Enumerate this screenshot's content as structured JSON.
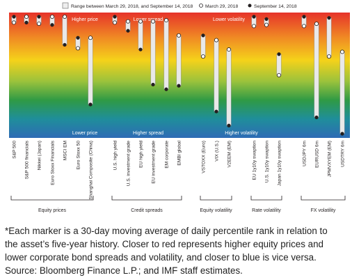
{
  "chart_data": {
    "type": "range",
    "legend": {
      "range_label": "Range between March 29, 2018, and September 14, 2018",
      "start_label": "March 29, 2018",
      "end_label": "September 14, 2018"
    },
    "band_labels": {
      "top": [
        "Higher price",
        "Lower spread",
        "Lower volatility"
      ],
      "bottom": [
        "Lower price",
        "Higher spread",
        "Higher volatility"
      ]
    },
    "ylim": [
      0,
      100
    ],
    "groups": [
      {
        "name": "Equity prices",
        "assets": [
          {
            "name": "S&P 500",
            "mar29": 95,
            "sep14": 100
          },
          {
            "name": "S&P 500 financials",
            "mar29": 100,
            "sep14": 95
          },
          {
            "name": "Nikkei (Japan)",
            "mar29": 94,
            "sep14": 100
          },
          {
            "name": "Euro Stoxx Financials",
            "mar29": 100,
            "sep14": 93
          },
          {
            "name": "MSCI EM",
            "mar29": 100,
            "sep14": 76
          },
          {
            "name": "Euro Stoxx 50",
            "mar29": 73,
            "sep14": 82
          },
          {
            "name": "Shanghai Composite (China)",
            "mar29": 82,
            "sep14": 25
          }
        ]
      },
      {
        "name": "Credit spreads",
        "assets": [
          {
            "name": "U.S. high yield",
            "mar29": 95,
            "sep14": 100
          },
          {
            "name": "U.S. investment grade",
            "mar29": 96,
            "sep14": 88
          },
          {
            "name": "EU high yield",
            "mar29": 96,
            "sep14": 72
          },
          {
            "name": "EU investment grade",
            "mar29": 96,
            "sep14": 42
          },
          {
            "name": "EM corporate",
            "mar29": 97,
            "sep14": 38
          },
          {
            "name": "EMBI global",
            "mar29": 84,
            "sep14": 41
          }
        ]
      },
      {
        "name": "Equity volatility",
        "assets": [
          {
            "name": "VSTOXX (Euro)",
            "mar29": 66,
            "sep14": 84
          },
          {
            "name": "VIX (U.S.)",
            "mar29": 80,
            "sep14": 19
          },
          {
            "name": "V2EEM (EM)",
            "mar29": 72,
            "sep14": 7
          }
        ]
      },
      {
        "name": "Rate volatility",
        "assets": [
          {
            "name": "EU 1y10y swaption",
            "mar29": 92,
            "sep14": 100
          },
          {
            "name": "U.S. 1y10y swaption",
            "mar29": 93,
            "sep14": 98
          },
          {
            "name": "Japan 1y10y swaption",
            "mar29": 50,
            "sep14": 68
          }
        ]
      },
      {
        "name": "FX volatility",
        "assets": [
          {
            "name": "USDJPY 6m",
            "mar29": 92,
            "sep14": 100
          },
          {
            "name": "EURUSD 6m",
            "mar29": 94,
            "sep14": 14
          },
          {
            "name": "JPMVXYEM (EM)",
            "mar29": 66,
            "sep14": 99
          },
          {
            "name": "USDTRY 6m",
            "mar29": 70,
            "sep14": 0
          }
        ]
      }
    ]
  },
  "notes": {
    "line1": "*Each marker is a 30-day moving average of daily percentile rank in relation to",
    "line2": "the asset’s five-year history. Closer to red represents higher equity prices and",
    "line3": "lower corporate bond spreads and volatility, and closer to blue is vice versa.",
    "source": "Source: Bloomberg Finance L.P.; and IMF staff estimates."
  }
}
